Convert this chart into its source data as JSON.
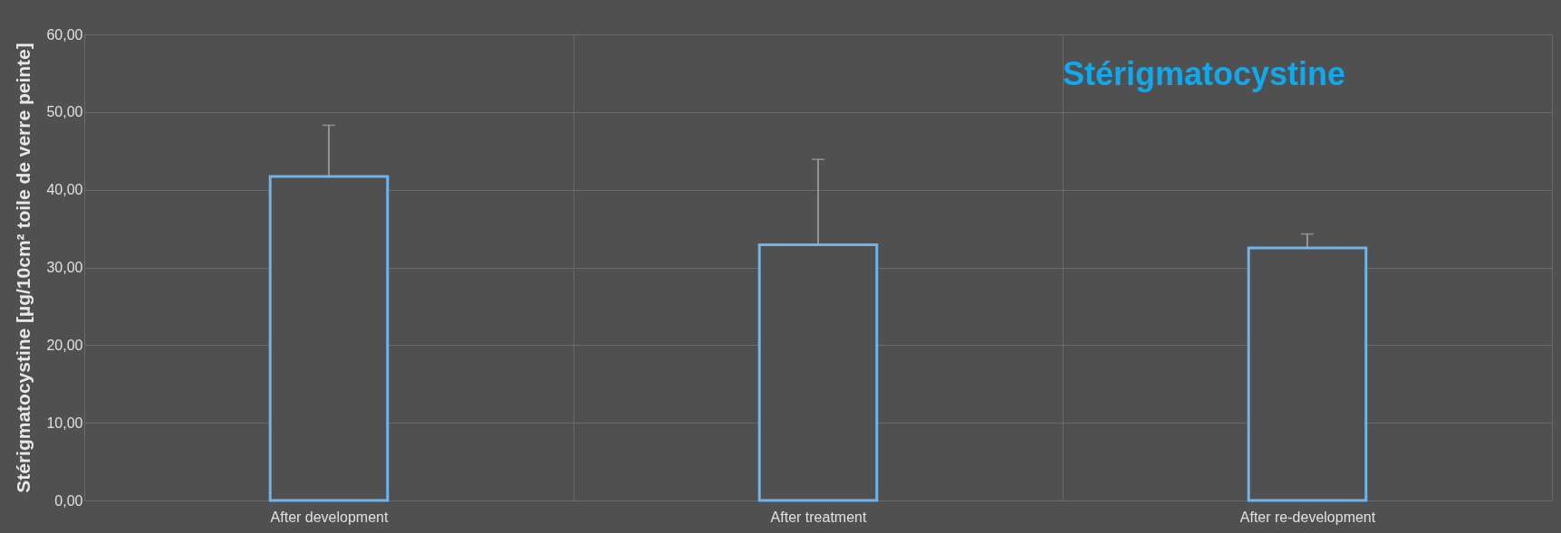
{
  "chart_data": {
    "type": "bar",
    "title": "Stérigmatocystine",
    "ylabel": "Stérigmatocystine [µg/10cm² toile de verre peinte]",
    "categories": [
      "After development",
      "After treatment",
      "After re-development"
    ],
    "values": [
      41.7,
      32.9,
      32.5
    ],
    "errors": [
      [
        41.7,
        48.3
      ],
      [
        32.9,
        43.9
      ],
      [
        32.5,
        34.3
      ]
    ],
    "color": "#6fb4ea",
    "ylim": [
      0,
      60
    ],
    "yticks": [
      {
        "value": 0,
        "label": "0,00"
      },
      {
        "value": 10,
        "label": "10,00"
      },
      {
        "value": 20,
        "label": "20,00"
      },
      {
        "value": 30,
        "label": "30,00"
      },
      {
        "value": 40,
        "label": "40,00"
      },
      {
        "value": 50,
        "label": "50,00"
      },
      {
        "value": 60,
        "label": "60,00"
      }
    ],
    "grid": true
  }
}
